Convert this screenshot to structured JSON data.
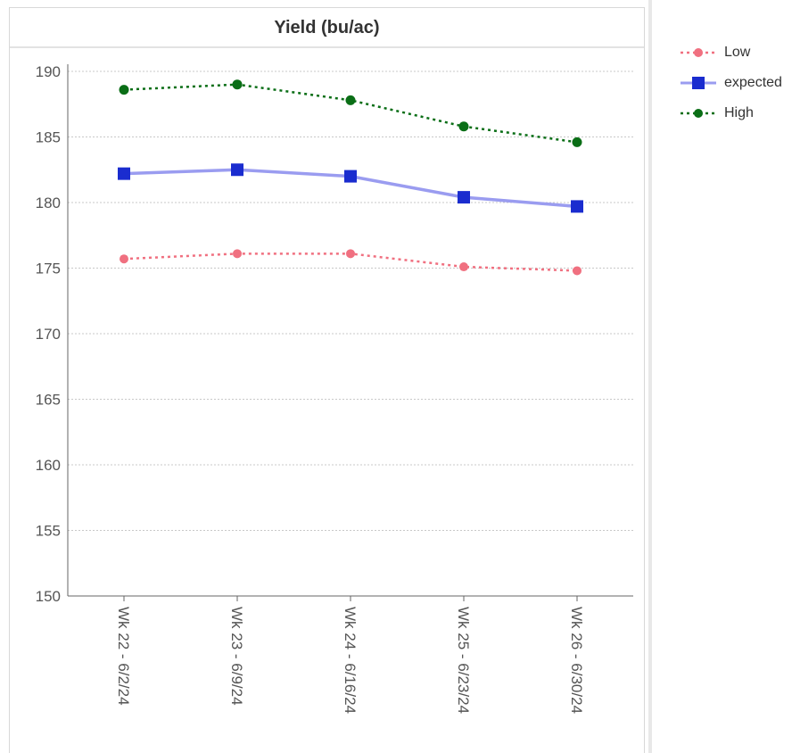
{
  "chart_data": {
    "type": "line",
    "title": "Yield (bu/ac)",
    "categories": [
      "Wk 22 - 6/2/24",
      "Wk 23 - 6/9/24",
      "Wk 24 - 6/16/24",
      "Wk 25 - 6/23/24",
      "Wk 26 - 6/30/24"
    ],
    "ylim": [
      150,
      190
    ],
    "yticks": [
      150,
      155,
      160,
      165,
      170,
      175,
      180,
      185,
      190
    ],
    "grid": true,
    "legend_position": "right",
    "series": [
      {
        "name": "Low",
        "values": [
          175.7,
          176.1,
          176.1,
          175.1,
          174.8
        ],
        "color": "#f07080",
        "line": "dotted",
        "marker": "circle"
      },
      {
        "name": "expected",
        "values": [
          182.2,
          182.5,
          182.0,
          180.4,
          179.7
        ],
        "color": "#1a2ccf",
        "line_color": "#9a9cf0",
        "line": "solid",
        "marker": "square"
      },
      {
        "name": "High",
        "values": [
          188.6,
          189.0,
          187.8,
          185.8,
          184.6
        ],
        "color": "#0a6e16",
        "line": "dotted",
        "marker": "circle"
      }
    ]
  }
}
